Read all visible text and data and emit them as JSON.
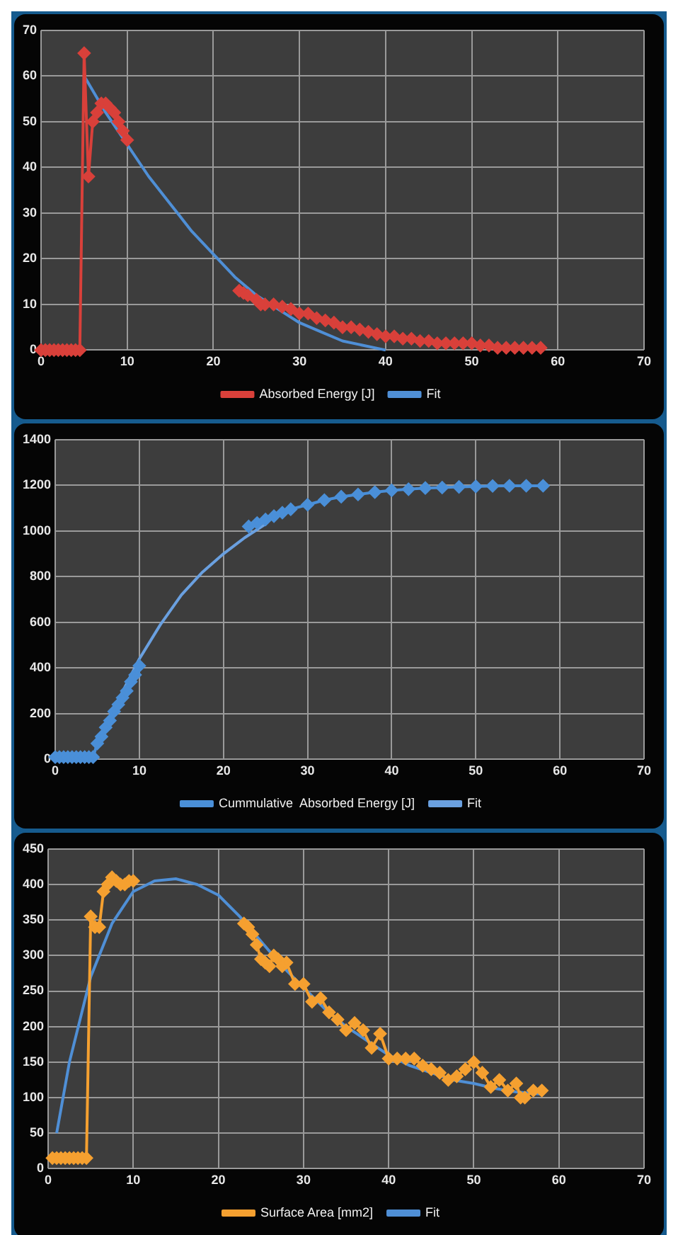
{
  "chart_data": [
    {
      "type": "line",
      "xlim": [
        0,
        70
      ],
      "xticks": [
        0,
        10,
        20,
        30,
        40,
        50,
        60,
        70
      ],
      "ylim": [
        0,
        70
      ],
      "yticks": [
        0,
        10,
        20,
        30,
        40,
        50,
        60,
        70
      ],
      "grid": true,
      "legend": "bottom",
      "marker": "diamond",
      "series": [
        {
          "name": "Absorbed Energy [J]",
          "color": "#d9403a",
          "x": [
            0,
            0.5,
            1,
            1.5,
            2,
            2.5,
            3,
            3.5,
            4,
            4.5,
            5,
            5.5,
            6,
            6.5,
            7,
            7.5,
            8,
            8.5,
            9,
            9.5,
            10,
            16,
            23,
            23.5,
            24,
            25,
            25.5,
            26,
            27,
            28,
            29,
            30,
            31,
            32,
            33,
            34,
            35,
            36,
            37,
            38,
            39,
            40,
            41,
            42,
            43,
            44,
            45,
            46,
            47,
            48,
            49,
            50,
            51,
            52,
            53,
            54,
            54.5,
            55,
            56,
            57,
            58
          ],
          "values": [
            0,
            0,
            0,
            0,
            0,
            0,
            0,
            0,
            0,
            0,
            65,
            38,
            50,
            52,
            54,
            54,
            53,
            52,
            50,
            48,
            46,
            null,
            13,
            12.5,
            12,
            11,
            10,
            10,
            10,
            9.5,
            9,
            8,
            8,
            7,
            6.5,
            6,
            5,
            5,
            4.5,
            4,
            3.5,
            3,
            3,
            2.5,
            2.5,
            2,
            2,
            1.5,
            1.5,
            1.5,
            1.5,
            1.5,
            1,
            1,
            0.5,
            0.5,
            null,
            0.5,
            0.5,
            0.5,
            0.5
          ]
        },
        {
          "name": "Fit",
          "color": "#4f8fd6",
          "marker": "none",
          "x": [
            5,
            7.5,
            10,
            12.5,
            15,
            17.5,
            20,
            22.5,
            25,
            27.5,
            30,
            32.5,
            35,
            37.5,
            40
          ],
          "values": [
            60,
            52,
            45,
            38,
            32,
            26,
            21,
            16,
            12,
            9,
            6,
            4,
            2,
            1,
            0
          ]
        }
      ]
    },
    {
      "type": "line",
      "xlim": [
        0,
        70
      ],
      "xticks": [
        0,
        10,
        20,
        30,
        40,
        50,
        60,
        70
      ],
      "ylim": [
        0,
        1400
      ],
      "yticks": [
        0,
        200,
        400,
        600,
        800,
        1000,
        1200,
        1400
      ],
      "grid": true,
      "legend": "bottom",
      "marker": "diamond",
      "series": [
        {
          "name": "Cummulative  Absorbed Energy [J]",
          "color": "#4a8fd8",
          "x": [
            0,
            0.5,
            1,
            1.5,
            2,
            2.5,
            3,
            3.5,
            4,
            4.5,
            5,
            5.5,
            6,
            6.5,
            7,
            7.5,
            8,
            8.5,
            9,
            9.5,
            10,
            16,
            23,
            24,
            25,
            26,
            27,
            28,
            30,
            32,
            34,
            36,
            38,
            40,
            42,
            44,
            46,
            48,
            50,
            52,
            54,
            56,
            58
          ],
          "values": [
            10,
            10,
            10,
            10,
            10,
            10,
            10,
            10,
            10,
            10,
            70,
            100,
            140,
            170,
            210,
            240,
            270,
            300,
            340,
            370,
            410,
            null,
            1020,
            1035,
            1050,
            1065,
            1080,
            1095,
            1115,
            1135,
            1150,
            1160,
            1170,
            1178,
            1183,
            1188,
            1190,
            1193,
            1195,
            1197,
            1198,
            1198,
            1198
          ]
        },
        {
          "name": "Fit",
          "color": "#6aa0e0",
          "marker": "none",
          "x": [
            5,
            7.5,
            10,
            12.5,
            15,
            17.5,
            20,
            22.5,
            25
          ],
          "values": [
            60,
            260,
            440,
            590,
            720,
            820,
            900,
            970,
            1030
          ]
        }
      ]
    },
    {
      "type": "line",
      "xlim": [
        0,
        70
      ],
      "xticks": [
        0,
        10,
        20,
        30,
        40,
        50,
        60,
        70
      ],
      "ylim": [
        0,
        450
      ],
      "yticks": [
        0,
        50,
        100,
        150,
        200,
        250,
        300,
        350,
        400,
        450
      ],
      "grid": true,
      "legend": "bottom",
      "marker": "diamond",
      "series": [
        {
          "name": "Surface Area [mm2]",
          "color": "#f5a030",
          "x": [
            0.5,
            1,
            1.5,
            2,
            2.5,
            3,
            3.5,
            4,
            4.5,
            5,
            5.5,
            6,
            6.5,
            7,
            7.5,
            8,
            8.5,
            9,
            9.5,
            10,
            16,
            23,
            23.5,
            24,
            24.5,
            25,
            25.5,
            26,
            26.5,
            27,
            27.5,
            28,
            29,
            30,
            31,
            32,
            33,
            34,
            35,
            36,
            37,
            38,
            39,
            40,
            41,
            42,
            43,
            44,
            45,
            46,
            47,
            48,
            49,
            50,
            51,
            52,
            53,
            54,
            55,
            55.5,
            56,
            57,
            58
          ],
          "values": [
            15,
            15,
            15,
            15,
            15,
            15,
            15,
            15,
            15,
            355,
            340,
            340,
            390,
            400,
            410,
            405,
            400,
            400,
            405,
            405,
            null,
            345,
            340,
            330,
            315,
            295,
            290,
            285,
            300,
            295,
            285,
            290,
            260,
            260,
            235,
            240,
            220,
            210,
            195,
            205,
            195,
            170,
            190,
            155,
            155,
            155,
            155,
            145,
            140,
            135,
            125,
            130,
            140,
            150,
            135,
            115,
            125,
            110,
            120,
            100,
            100,
            110,
            110
          ]
        },
        {
          "name": "Fit",
          "color": "#4f8fd6",
          "marker": "none",
          "x": [
            1,
            2.5,
            5,
            7.5,
            10,
            12.5,
            15,
            17.5,
            20,
            22.5,
            25,
            27.5,
            30,
            32.5,
            35,
            37.5,
            40,
            42.5,
            45,
            47.5,
            50,
            52.5,
            55,
            58
          ],
          "values": [
            50,
            150,
            270,
            345,
            390,
            405,
            408,
            400,
            385,
            355,
            320,
            285,
            255,
            225,
            200,
            180,
            160,
            145,
            135,
            125,
            120,
            113,
            108,
            105
          ]
        }
      ]
    }
  ]
}
